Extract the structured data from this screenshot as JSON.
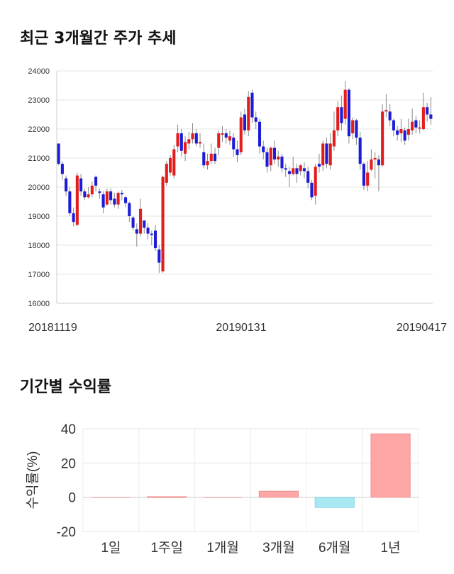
{
  "chart_data": [
    {
      "type": "candlestick",
      "title": "최근 3개월간 주가 추세",
      "ylim": [
        16000,
        24000
      ],
      "yticks": [
        16000,
        17000,
        18000,
        19000,
        20000,
        21000,
        22000,
        23000,
        24000
      ],
      "xtick_labels": [
        "20181119",
        "20190131",
        "20190417"
      ],
      "grid": true,
      "up_color": "#e31c1c",
      "down_color": "#1c1cd6",
      "candles": [
        [
          21500,
          20800,
          21500,
          20750
        ],
        [
          20800,
          20450,
          20900,
          20250
        ],
        [
          20300,
          19850,
          20400,
          19700
        ],
        [
          19850,
          19100,
          20000,
          19000
        ],
        [
          19100,
          18800,
          19300,
          18650
        ],
        [
          18700,
          20400,
          20500,
          18650
        ],
        [
          20300,
          19850,
          20450,
          19700
        ],
        [
          19850,
          19650,
          19950,
          19550
        ],
        [
          19650,
          19750,
          20000,
          19600
        ],
        [
          19750,
          20050,
          20200,
          19650
        ],
        [
          20350,
          20050,
          20400,
          19850
        ],
        [
          19850,
          19800,
          19950,
          19600
        ],
        [
          19750,
          19300,
          19850,
          19100
        ],
        [
          19400,
          19850,
          19950,
          19350
        ],
        [
          19850,
          19550,
          19950,
          19400
        ],
        [
          19600,
          19400,
          19800,
          19300
        ],
        [
          19400,
          19800,
          19850,
          19250
        ],
        [
          19800,
          19750,
          19900,
          19550
        ],
        [
          19650,
          19450,
          19700,
          19300
        ],
        [
          19450,
          19000,
          19500,
          18800
        ],
        [
          18950,
          18600,
          19000,
          18500
        ],
        [
          18550,
          18400,
          18750,
          17950
        ],
        [
          18400,
          19250,
          19600,
          18300
        ],
        [
          18850,
          18600,
          18850,
          18400
        ],
        [
          18600,
          18400,
          18750,
          18200
        ],
        [
          18400,
          18350,
          18500,
          18000
        ],
        [
          18500,
          17900,
          18700,
          17800
        ],
        [
          17850,
          17400,
          18000,
          17050
        ],
        [
          17100,
          20350,
          20400,
          17050
        ],
        [
          20150,
          20800,
          20900,
          20050
        ],
        [
          20500,
          21000,
          21100,
          20400
        ],
        [
          20400,
          21300,
          21450,
          20300
        ],
        [
          21400,
          21850,
          22150,
          21200
        ],
        [
          21850,
          21250,
          22000,
          21050
        ],
        [
          21150,
          21550,
          21750,
          20900
        ],
        [
          21500,
          21650,
          21900,
          21300
        ],
        [
          21650,
          21850,
          22200,
          21500
        ],
        [
          21850,
          21500,
          22000,
          21400
        ],
        [
          21500,
          21550,
          21850,
          21350
        ],
        [
          21200,
          20750,
          21500,
          20650
        ],
        [
          20750,
          20900,
          21150,
          20600
        ],
        [
          20900,
          21150,
          21500,
          20800
        ],
        [
          21150,
          20900,
          21350,
          20800
        ],
        [
          21350,
          21850,
          21950,
          21100
        ],
        [
          21800,
          21850,
          22100,
          21550
        ],
        [
          21850,
          21700,
          22000,
          21500
        ],
        [
          21600,
          21750,
          21950,
          21450
        ],
        [
          21700,
          21300,
          21850,
          21050
        ],
        [
          21300,
          21100,
          21600,
          20850
        ],
        [
          21200,
          22400,
          22600,
          21100
        ],
        [
          22500,
          21950,
          22700,
          21800
        ],
        [
          21950,
          23100,
          23300,
          21750
        ],
        [
          23250,
          22400,
          23350,
          22200
        ],
        [
          22400,
          22250,
          22600,
          22000
        ],
        [
          22250,
          21400,
          22350,
          21150
        ],
        [
          21400,
          21200,
          21600,
          20950
        ],
        [
          21200,
          20700,
          21350,
          20500
        ],
        [
          20750,
          21350,
          21400,
          20550
        ],
        [
          21350,
          20950,
          21600,
          20800
        ],
        [
          20950,
          21050,
          21250,
          20700
        ],
        [
          21050,
          20650,
          21150,
          20500
        ],
        [
          20650,
          20600,
          20800,
          20350
        ],
        [
          20550,
          20450,
          20700,
          20000
        ],
        [
          20450,
          20650,
          21050,
          20400
        ],
        [
          20650,
          20450,
          20800,
          20150
        ],
        [
          20550,
          20750,
          20800,
          20400
        ],
        [
          20650,
          20550,
          20850,
          20300
        ],
        [
          20550,
          20150,
          20700,
          19950
        ],
        [
          20150,
          19650,
          20250,
          19550
        ],
        [
          19700,
          20700,
          20800,
          19400
        ],
        [
          20800,
          20700,
          21150,
          20500
        ],
        [
          20750,
          21500,
          21600,
          20550
        ],
        [
          21500,
          20800,
          21700,
          20650
        ],
        [
          20750,
          21500,
          21850,
          20600
        ],
        [
          21400,
          21950,
          22600,
          21250
        ],
        [
          21950,
          22750,
          22950,
          21750
        ],
        [
          22750,
          22200,
          23150,
          21950
        ],
        [
          22350,
          23350,
          23650,
          22150
        ],
        [
          23350,
          21750,
          23400,
          21500
        ],
        [
          21850,
          22300,
          22400,
          21650
        ],
        [
          22300,
          21700,
          22350,
          21450
        ],
        [
          21700,
          20800,
          21900,
          20600
        ],
        [
          20800,
          20050,
          20850,
          19900
        ],
        [
          20050,
          20500,
          20900,
          19850
        ],
        [
          20600,
          20950,
          21300,
          20550
        ],
        [
          20950,
          21000,
          21200,
          20300
        ],
        [
          20950,
          20750,
          21100,
          19850
        ],
        [
          20750,
          22600,
          22850,
          20700
        ],
        [
          22600,
          22650,
          23200,
          22400
        ],
        [
          22600,
          22300,
          22850,
          22100
        ],
        [
          22300,
          21950,
          22350,
          21750
        ],
        [
          21950,
          21800,
          22100,
          21600
        ],
        [
          21850,
          22000,
          22350,
          21550
        ],
        [
          21950,
          21600,
          22050,
          21450
        ],
        [
          21800,
          22000,
          22350,
          21600
        ],
        [
          21950,
          22250,
          22700,
          21800
        ],
        [
          22300,
          22050,
          22450,
          21850
        ],
        [
          22050,
          22050,
          22300,
          21850
        ],
        [
          22000,
          22750,
          23250,
          21950
        ],
        [
          22750,
          22500,
          22900,
          22250
        ],
        [
          22500,
          22350,
          23100,
          22150
        ]
      ]
    },
    {
      "type": "bar",
      "title": "기간별 수익률",
      "ylabel": "수익률(%)",
      "ylim": [
        -20,
        40
      ],
      "yticks": [
        -20,
        0,
        20,
        40
      ],
      "categories": [
        "1일",
        "1주일",
        "1개월",
        "3개월",
        "6개월",
        "1년"
      ],
      "values": [
        0.0,
        0.3,
        0.0,
        3.5,
        -6.0,
        37.0
      ],
      "positive_color": "#ffa7a7",
      "negative_color": "#a8e8f2",
      "grid": true
    }
  ]
}
